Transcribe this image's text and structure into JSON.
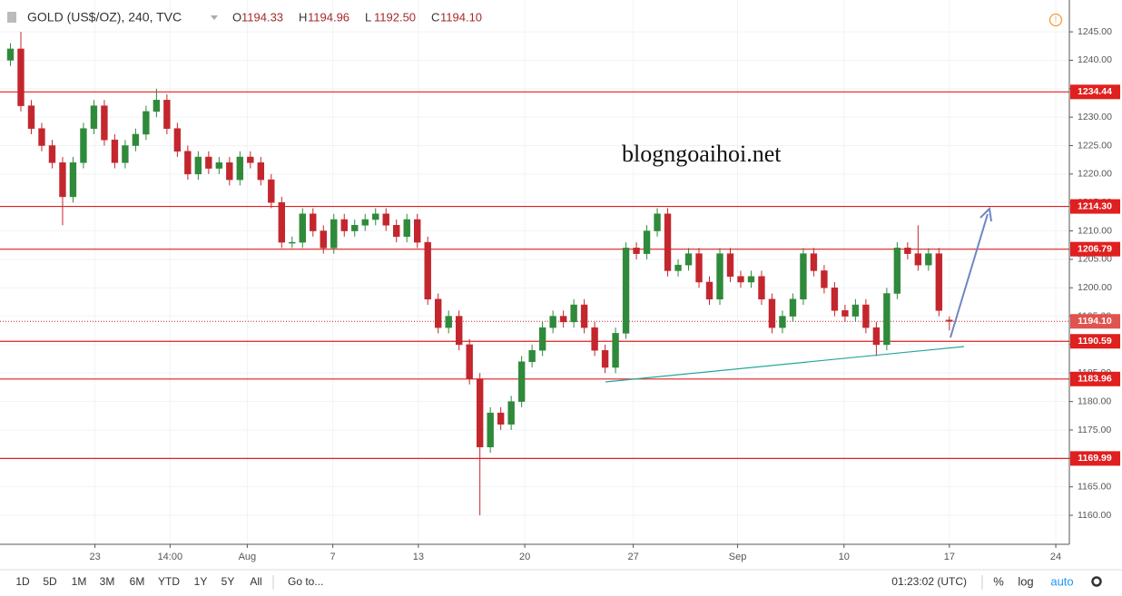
{
  "chart_data": {
    "type": "candlestick",
    "title": "GOLD (US$/OZ), 240, TVC",
    "ohlc_legend": [
      {
        "key": "O",
        "label": "1194.33"
      },
      {
        "key": "H",
        "label": "1194.96"
      },
      {
        "key": "L",
        "label": "1192.50"
      },
      {
        "key": "C",
        "label": "1194.10"
      }
    ],
    "watermark": "blogngoaihoi.net",
    "up_color": "#2f8a3b",
    "down_color": "#c4262e",
    "level_color": "#e01f1f",
    "grid": true,
    "x": [
      0,
      1,
      2,
      3,
      4,
      5,
      6,
      7,
      8,
      9,
      10,
      11,
      12,
      13,
      14,
      15,
      16,
      17,
      18,
      19,
      20,
      21,
      22,
      23,
      24,
      25,
      26,
      27,
      28,
      29,
      30,
      31,
      32,
      33,
      34,
      35,
      36,
      37,
      38,
      39,
      40,
      41,
      42,
      43,
      44,
      45,
      46,
      47,
      48,
      49,
      50,
      51,
      52,
      53,
      54,
      55,
      56,
      57,
      58,
      59,
      60,
      61,
      62,
      63,
      64,
      65,
      66,
      67,
      68,
      69,
      70,
      71,
      72,
      73,
      74,
      75,
      76,
      77,
      78,
      79,
      80,
      81,
      82,
      83,
      84,
      85,
      86,
      87,
      88,
      89,
      90
    ],
    "open": [
      1240,
      1242,
      1232,
      1228,
      1225,
      1222,
      1216,
      1222,
      1228,
      1232,
      1226,
      1222,
      1225,
      1227,
      1231,
      1233,
      1228,
      1224,
      1220,
      1223,
      1221,
      1222,
      1219,
      1223,
      1222,
      1219,
      1215,
      1208,
      1208,
      1213,
      1210,
      1207,
      1212,
      1210,
      1211,
      1212,
      1213,
      1211,
      1209,
      1212,
      1208,
      1198,
      1193,
      1195,
      1190,
      1184,
      1172,
      1178,
      1176,
      1180,
      1187,
      1189,
      1193,
      1195,
      1194,
      1197,
      1193,
      1189,
      1186,
      1192,
      1207,
      1206,
      1210,
      1213,
      1203,
      1204,
      1206,
      1201,
      1198,
      1206,
      1202,
      1201,
      1202,
      1198,
      1193,
      1195,
      1198,
      1206,
      1203,
      1200,
      1196,
      1195,
      1197,
      1193,
      1190,
      1199,
      1207,
      1206,
      1204,
      1206,
      1194.33
    ],
    "high": [
      1243,
      1245,
      1233,
      1229,
      1226,
      1223,
      1223,
      1229,
      1233,
      1233,
      1227,
      1226,
      1228,
      1232,
      1235,
      1234,
      1229,
      1225,
      1224,
      1224,
      1223,
      1223,
      1224,
      1224,
      1223,
      1220,
      1216,
      1209,
      1214,
      1214,
      1211,
      1213,
      1213,
      1212,
      1213,
      1214,
      1214,
      1212,
      1213,
      1213,
      1209,
      1199,
      1196,
      1196,
      1191,
      1185,
      1179,
      1179,
      1181,
      1188,
      1190,
      1194,
      1196,
      1196,
      1198,
      1198,
      1194,
      1190,
      1193,
      1208,
      1208,
      1211,
      1214,
      1214,
      1205,
      1207,
      1207,
      1202,
      1207,
      1207,
      1203,
      1203,
      1203,
      1199,
      1196,
      1199,
      1207,
      1207,
      1204,
      1201,
      1197,
      1198,
      1198,
      1194,
      1200,
      1208,
      1208,
      1211,
      1207,
      1207,
      1194.96
    ],
    "low": [
      1239,
      1231,
      1227,
      1224,
      1221,
      1211,
      1215,
      1221,
      1227,
      1225,
      1221,
      1221,
      1224,
      1226,
      1230,
      1227,
      1223,
      1219,
      1219,
      1220,
      1220,
      1218,
      1218,
      1221,
      1218,
      1214,
      1207,
      1207,
      1207,
      1209,
      1206,
      1206,
      1209,
      1209,
      1210,
      1211,
      1210,
      1208,
      1208,
      1207,
      1197,
      1192,
      1192,
      1189,
      1183,
      1160,
      1171,
      1175,
      1175,
      1179,
      1186,
      1188,
      1192,
      1193,
      1193,
      1192,
      1188,
      1185,
      1185,
      1191,
      1205,
      1205,
      1209,
      1202,
      1202,
      1203,
      1200,
      1197,
      1197,
      1201,
      1200,
      1200,
      1197,
      1192,
      1192,
      1194,
      1197,
      1202,
      1199,
      1195,
      1194,
      1194,
      1192,
      1188,
      1189,
      1198,
      1205,
      1203,
      1203,
      1195,
      1192.5
    ],
    "close": [
      1242,
      1232,
      1228,
      1225,
      1222,
      1216,
      1222,
      1228,
      1232,
      1226,
      1222,
      1225,
      1227,
      1231,
      1233,
      1228,
      1224,
      1220,
      1223,
      1221,
      1222,
      1219,
      1223,
      1222,
      1219,
      1215,
      1208,
      1208,
      1213,
      1210,
      1207,
      1212,
      1210,
      1211,
      1212,
      1213,
      1211,
      1209,
      1212,
      1208,
      1198,
      1193,
      1195,
      1190,
      1184,
      1172,
      1178,
      1176,
      1180,
      1187,
      1189,
      1193,
      1195,
      1194,
      1197,
      1193,
      1189,
      1186,
      1192,
      1207,
      1206,
      1210,
      1213,
      1203,
      1204,
      1206,
      1201,
      1198,
      1206,
      1202,
      1201,
      1202,
      1198,
      1193,
      1195,
      1198,
      1206,
      1203,
      1200,
      1196,
      1195,
      1197,
      1193,
      1190,
      1199,
      1207,
      1206,
      1204,
      1206,
      1196,
      1194.1
    ],
    "xlim": [
      -1,
      101.5
    ],
    "xticks": [
      {
        "value": 8.1,
        "label": "23"
      },
      {
        "value": 15.3,
        "label": "14:00"
      },
      {
        "value": 22.7,
        "label": "Aug"
      },
      {
        "value": 30.9,
        "label": "7"
      },
      {
        "value": 39.1,
        "label": "13"
      },
      {
        "value": 49.3,
        "label": "20"
      },
      {
        "value": 59.7,
        "label": "27"
      },
      {
        "value": 69.7,
        "label": "Sep"
      },
      {
        "value": 79.9,
        "label": "10"
      },
      {
        "value": 90,
        "label": "17"
      },
      {
        "value": 100.2,
        "label": "24"
      }
    ],
    "ylim": [
      1154.9,
      1250.6
    ],
    "yticks": [
      {
        "value": 1160,
        "label": "1160.00"
      },
      {
        "value": 1165,
        "label": "1165.00"
      },
      {
        "value": 1170,
        "label": "1170.00"
      },
      {
        "value": 1175,
        "label": "1175.00"
      },
      {
        "value": 1180,
        "label": "1180.00"
      },
      {
        "value": 1185,
        "label": "1185.00"
      },
      {
        "value": 1190,
        "label": "1190.00"
      },
      {
        "value": 1195,
        "label": "1195.00"
      },
      {
        "value": 1200,
        "label": "1200.00"
      },
      {
        "value": 1205,
        "label": "1205.00"
      },
      {
        "value": 1210,
        "label": "1210.00"
      },
      {
        "value": 1215,
        "label": "1215.00"
      },
      {
        "value": 1220,
        "label": "1220.00"
      },
      {
        "value": 1225,
        "label": "1225.00"
      },
      {
        "value": 1230,
        "label": "1230.00"
      },
      {
        "value": 1235,
        "label": "1235.00"
      },
      {
        "value": 1240,
        "label": "1240.00"
      },
      {
        "value": 1245,
        "label": "1245.00"
      }
    ],
    "levels": [
      {
        "value": 1234.44,
        "label": "1234.44"
      },
      {
        "value": 1214.3,
        "label": "1214.30"
      },
      {
        "value": 1206.79,
        "label": "1206.79"
      },
      {
        "value": 1190.59,
        "label": "1190.59"
      },
      {
        "value": 1183.96,
        "label": "1183.96"
      },
      {
        "value": 1169.99,
        "label": "1169.99"
      }
    ],
    "last_price": {
      "value": 1194.1,
      "label": "1194.10"
    }
  },
  "toolbar": {
    "ranges": [
      "1D",
      "5D",
      "1M",
      "3M",
      "6M",
      "YTD",
      "1Y",
      "5Y",
      "All"
    ],
    "goto": "Go to...",
    "clock": "01:23:02 (UTC)",
    "percent": "%",
    "log": "log",
    "auto": "auto"
  }
}
